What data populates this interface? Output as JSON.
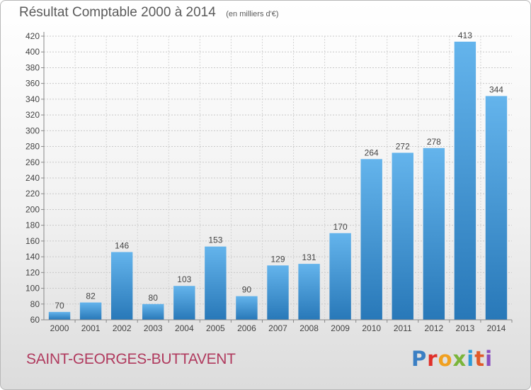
{
  "header": {
    "title": "Résultat Comptable 2000 à 2014",
    "subtitle": "(en milliers d'€)"
  },
  "footer": {
    "commune": "SAINT-GEORGES-BUTTAVENT",
    "logo": "Proxiti"
  },
  "colors": {
    "bar_light": "#64b4ec",
    "bar_dark": "#2878b8",
    "text": "#444444",
    "commune": "#b03a5e"
  },
  "chart_data": {
    "type": "bar",
    "title": "Résultat Comptable 2000 à 2014",
    "subtitle": "(en milliers d'€)",
    "categories": [
      "2000",
      "2001",
      "2002",
      "2003",
      "2004",
      "2005",
      "2006",
      "2007",
      "2008",
      "2009",
      "2010",
      "2011",
      "2012",
      "2013",
      "2014"
    ],
    "values": [
      70,
      82,
      146,
      80,
      103,
      153,
      90,
      129,
      131,
      170,
      264,
      272,
      278,
      413,
      344
    ],
    "ylim": [
      60,
      420
    ],
    "yticks": [
      60,
      80,
      100,
      120,
      140,
      160,
      180,
      200,
      220,
      240,
      260,
      280,
      300,
      320,
      340,
      360,
      380,
      400,
      420
    ],
    "grid": true,
    "data_labels": true
  }
}
